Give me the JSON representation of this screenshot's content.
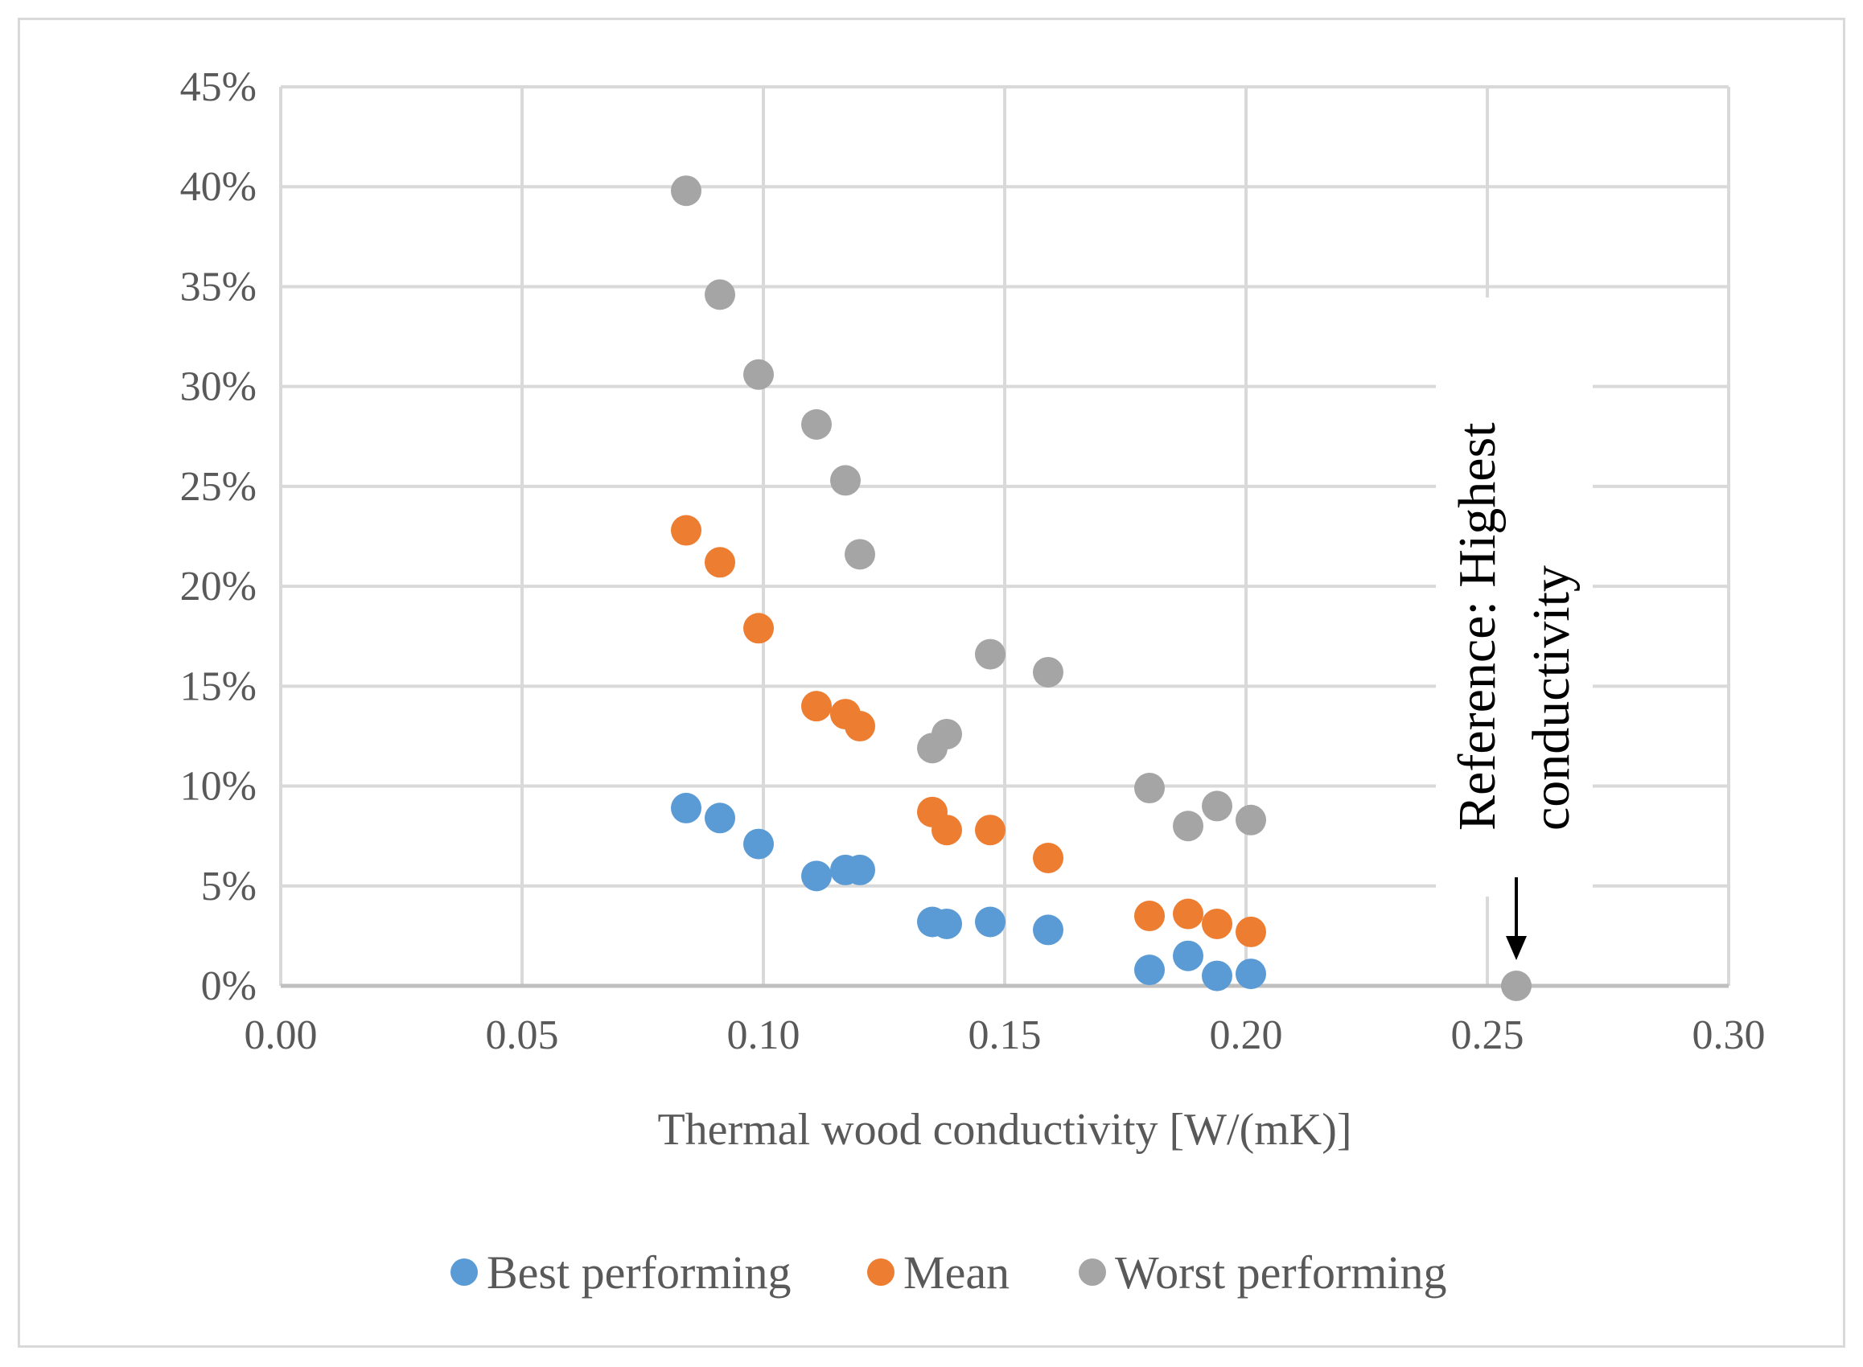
{
  "chart_data": {
    "type": "scatter",
    "title": "",
    "xlabel": "Thermal wood conductivity [W/(mK)]",
    "ylabel": "",
    "xlim": [
      0.0,
      0.3
    ],
    "ylim": [
      0,
      0.45
    ],
    "x_ticks": [
      "0.00",
      "0.05",
      "0.10",
      "0.15",
      "0.20",
      "0.25",
      "0.30"
    ],
    "y_ticks": [
      "0%",
      "5%",
      "10%",
      "15%",
      "20%",
      "25%",
      "30%",
      "35%",
      "40%",
      "45%"
    ],
    "grid": true,
    "legend_position": "bottom",
    "series": [
      {
        "name": "Best performing",
        "color": "#5b9bd5",
        "points": [
          [
            0.084,
            0.089
          ],
          [
            0.091,
            0.084
          ],
          [
            0.099,
            0.071
          ],
          [
            0.111,
            0.055
          ],
          [
            0.117,
            0.058
          ],
          [
            0.12,
            0.058
          ],
          [
            0.135,
            0.032
          ],
          [
            0.138,
            0.031
          ],
          [
            0.147,
            0.032
          ],
          [
            0.159,
            0.028
          ],
          [
            0.18,
            0.008
          ],
          [
            0.188,
            0.015
          ],
          [
            0.194,
            0.005
          ],
          [
            0.201,
            0.006
          ]
        ]
      },
      {
        "name": "Mean",
        "color": "#ed7d31",
        "points": [
          [
            0.084,
            0.228
          ],
          [
            0.091,
            0.212
          ],
          [
            0.099,
            0.179
          ],
          [
            0.111,
            0.14
          ],
          [
            0.117,
            0.136
          ],
          [
            0.12,
            0.13
          ],
          [
            0.135,
            0.087
          ],
          [
            0.138,
            0.078
          ],
          [
            0.147,
            0.078
          ],
          [
            0.159,
            0.064
          ],
          [
            0.18,
            0.035
          ],
          [
            0.188,
            0.036
          ],
          [
            0.194,
            0.031
          ],
          [
            0.201,
            0.027
          ]
        ]
      },
      {
        "name": "Worst performing",
        "color": "#a5a5a5",
        "points": [
          [
            0.084,
            0.398
          ],
          [
            0.091,
            0.346
          ],
          [
            0.099,
            0.306
          ],
          [
            0.111,
            0.281
          ],
          [
            0.117,
            0.253
          ],
          [
            0.12,
            0.216
          ],
          [
            0.135,
            0.119
          ],
          [
            0.138,
            0.126
          ],
          [
            0.147,
            0.166
          ],
          [
            0.159,
            0.157
          ],
          [
            0.18,
            0.099
          ],
          [
            0.188,
            0.08
          ],
          [
            0.194,
            0.09
          ],
          [
            0.201,
            0.083
          ]
        ]
      }
    ],
    "reference_point": {
      "x": 0.256,
      "y": 0.0,
      "color": "#a5a5a5"
    },
    "annotation": {
      "lines": [
        "Reference: Highest",
        "conductivity"
      ]
    }
  }
}
